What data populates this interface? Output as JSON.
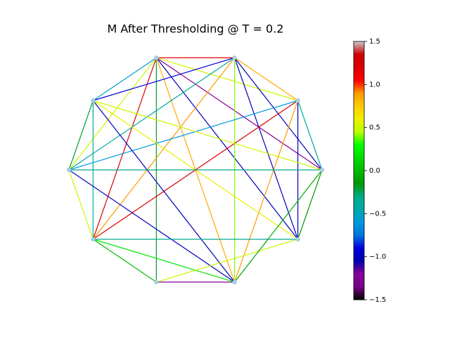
{
  "chart_data": {
    "type": "network",
    "title": "M After Thresholding @ T = 0.2",
    "node_count": 10,
    "node_color": "#a6cee3",
    "edges": [
      {
        "source": 3,
        "target": 2,
        "value": 1.2
      },
      {
        "source": 3,
        "target": 4,
        "value": -0.55
      },
      {
        "source": 3,
        "target": 7,
        "value": -0.2
      },
      {
        "source": 3,
        "target": 1,
        "value": 0.5
      },
      {
        "source": 3,
        "target": 0,
        "value": -1.2
      },
      {
        "source": 3,
        "target": 9,
        "value": -1.0
      },
      {
        "source": 3,
        "target": 8,
        "value": 0.85
      },
      {
        "source": 3,
        "target": 6,
        "value": 1.2
      },
      {
        "source": 3,
        "target": 5,
        "value": 0.5
      },
      {
        "source": 2,
        "target": 4,
        "value": -0.9
      },
      {
        "source": 2,
        "target": 1,
        "value": 0.85
      },
      {
        "source": 2,
        "target": 5,
        "value": -0.4
      },
      {
        "source": 2,
        "target": 6,
        "value": 0.9
      },
      {
        "source": 2,
        "target": 9,
        "value": -1.0
      },
      {
        "source": 2,
        "target": 8,
        "value": 0.4
      },
      {
        "source": 2,
        "target": 0,
        "value": -1.0
      },
      {
        "source": 1,
        "target": 5,
        "value": -0.6
      },
      {
        "source": 1,
        "target": 6,
        "value": 1.2
      },
      {
        "source": 1,
        "target": 8,
        "value": 0.9
      },
      {
        "source": 1,
        "target": 9,
        "value": -1.0
      },
      {
        "source": 4,
        "target": 0,
        "value": 0.5
      },
      {
        "source": 4,
        "target": 8,
        "value": -1.0
      },
      {
        "source": 4,
        "target": 6,
        "value": -0.4
      },
      {
        "source": 4,
        "target": 5,
        "value": -0.2
      },
      {
        "source": 4,
        "target": 9,
        "value": 0.6
      },
      {
        "source": 5,
        "target": 0,
        "value": -0.3
      },
      {
        "source": 5,
        "target": 8,
        "value": -1.0
      },
      {
        "source": 5,
        "target": 6,
        "value": 0.5
      },
      {
        "source": 6,
        "target": 9,
        "value": -0.35
      },
      {
        "source": 6,
        "target": 7,
        "value": 0.0
      },
      {
        "source": 6,
        "target": 8,
        "value": 0.2
      },
      {
        "source": 7,
        "target": 8,
        "value": -1.2
      },
      {
        "source": 7,
        "target": 9,
        "value": 0.5
      },
      {
        "source": 8,
        "target": 0,
        "value": -0.1
      },
      {
        "source": 9,
        "target": 0,
        "value": -0.15
      },
      {
        "source": 0,
        "target": 1,
        "value": -0.4
      }
    ],
    "clim": [
      -1.5,
      1.5
    ],
    "cticks": [
      {
        "value": -1.5,
        "label": "−1.5"
      },
      {
        "value": -1.0,
        "label": "−1.0"
      },
      {
        "value": -0.5,
        "label": "−0.5"
      },
      {
        "value": 0,
        "label": "0.0"
      },
      0.5,
      {
        "value": 1.0,
        "label": "1.0"
      },
      1.5
    ],
    "colormap": [
      "#000000",
      "#770088",
      "#880099",
      "#0000aa",
      "#0000dd",
      "#0077dd",
      "#0099dd",
      "#00aaaa",
      "#00aa88",
      "#009900",
      "#00bb00",
      "#00dd00",
      "#00ff00",
      "#bbff00",
      "#eeee00",
      "#ffcc00",
      "#ff9900",
      "#ff0000",
      "#dd0000",
      "#cc0000",
      "#cccccc"
    ]
  }
}
